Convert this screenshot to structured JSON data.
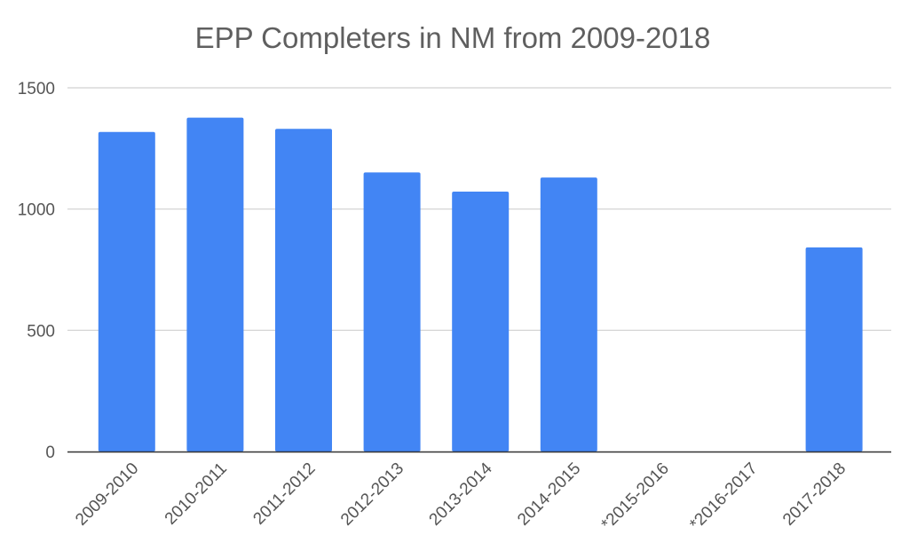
{
  "chart_data": {
    "type": "bar",
    "title": "EPP Completers in NM from 2009-2018",
    "xlabel": "",
    "ylabel": "",
    "categories": [
      "2009-2010",
      "2010-2011",
      "2011-2012",
      "2012-2013",
      "2013-2014",
      "2014-2015",
      "*2015-2016",
      "*2016-2017",
      "2017-2018"
    ],
    "values": [
      1318,
      1377,
      1331,
      1151,
      1072,
      1130,
      null,
      null,
      842
    ],
    "y_ticks": [
      0,
      500,
      1000,
      1500
    ],
    "y_tick_labels": [
      "0",
      "500",
      "1000",
      "1500"
    ],
    "ylim": [
      0,
      1500
    ],
    "grid": true,
    "legend": "none",
    "bar_color": "#4285f4",
    "grid_color": "#d0d0d0",
    "axis_color": "#333333"
  }
}
